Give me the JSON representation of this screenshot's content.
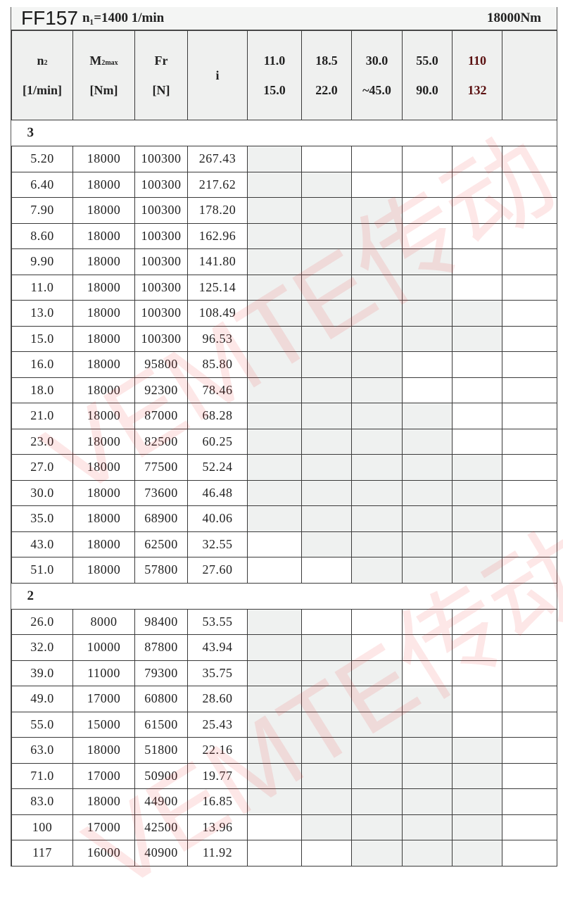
{
  "title": {
    "model": "FF157",
    "n1_label": "n₁=1400 1/min",
    "torque": "18000Nm"
  },
  "headers": [
    {
      "line1": "n",
      "sub": "2",
      "line2": "[1/min]"
    },
    {
      "line1": "M",
      "sub": "2max",
      "line2": "[Nm]"
    },
    {
      "line1": "Fr",
      "sub": "",
      "line2": "[N]"
    },
    {
      "line1": "i",
      "sub": "",
      "line2": ""
    },
    {
      "line1": "11.0",
      "sub": "",
      "line2": "15.0"
    },
    {
      "line1": "18.5",
      "sub": "",
      "line2": "22.0"
    },
    {
      "line1": "30.0",
      "sub": "",
      "line2": "~45.0"
    },
    {
      "line1": "55.0",
      "sub": "",
      "line2": "90.0"
    },
    {
      "line1": "110",
      "sub": "",
      "line2": "132"
    },
    {
      "line1": "",
      "sub": "",
      "line2": ""
    }
  ],
  "shade_color": "#eff1f0",
  "watermark": "VEMTE传动",
  "sections": [
    {
      "stage": "3",
      "rows": [
        {
          "n2": "5.20",
          "m2": "18000",
          "fr": "100300",
          "i": "267.43",
          "shaded": [
            1,
            1
          ]
        },
        {
          "n2": "6.40",
          "m2": "18000",
          "fr": "100300",
          "i": "217.62",
          "shaded": [
            1,
            2
          ]
        },
        {
          "n2": "7.90",
          "m2": "18000",
          "fr": "100300",
          "i": "178.20",
          "shaded": [
            1,
            3
          ]
        },
        {
          "n2": "8.60",
          "m2": "18000",
          "fr": "100300",
          "i": "162.96",
          "shaded": [
            1,
            3
          ]
        },
        {
          "n2": "9.90",
          "m2": "18000",
          "fr": "100300",
          "i": "141.80",
          "shaded": [
            1,
            4
          ]
        },
        {
          "n2": "11.0",
          "m2": "18000",
          "fr": "100300",
          "i": "125.14",
          "shaded": [
            1,
            4
          ]
        },
        {
          "n2": "13.0",
          "m2": "18000",
          "fr": "100300",
          "i": "108.49",
          "shaded": [
            1,
            5
          ]
        },
        {
          "n2": "15.0",
          "m2": "18000",
          "fr": "100300",
          "i": "96.53",
          "shaded": [
            1,
            5
          ]
        },
        {
          "n2": "16.0",
          "m2": "18000",
          "fr": "95800",
          "i": "85.80",
          "shaded": [
            1,
            3
          ]
        },
        {
          "n2": "18.0",
          "m2": "18000",
          "fr": "92300",
          "i": "78.46",
          "shaded": [
            1,
            3
          ]
        },
        {
          "n2": "21.0",
          "m2": "18000",
          "fr": "87000",
          "i": "68.28",
          "shaded": [
            1,
            4
          ]
        },
        {
          "n2": "23.0",
          "m2": "18000",
          "fr": "82500",
          "i": "60.25",
          "shaded": [
            1,
            4
          ]
        },
        {
          "n2": "27.0",
          "m2": "18000",
          "fr": "77500",
          "i": "52.24",
          "shaded": [
            1,
            5
          ]
        },
        {
          "n2": "30.0",
          "m2": "18000",
          "fr": "73600",
          "i": "46.48",
          "shaded": [
            1,
            5
          ]
        },
        {
          "n2": "35.0",
          "m2": "18000",
          "fr": "68900",
          "i": "40.06",
          "shaded": [
            1,
            5
          ]
        },
        {
          "n2": "43.0",
          "m2": "18000",
          "fr": "62500",
          "i": "32.55",
          "shaded": [
            2,
            5
          ]
        },
        {
          "n2": "51.0",
          "m2": "18000",
          "fr": "57800",
          "i": "27.60",
          "shaded": [
            3,
            5
          ]
        }
      ]
    },
    {
      "stage": "2",
      "rows": [
        {
          "n2": "26.0",
          "m2": "8000",
          "fr": "98400",
          "i": "53.55",
          "shaded": [
            1,
            1
          ]
        },
        {
          "n2": "32.0",
          "m2": "10000",
          "fr": "87800",
          "i": "43.94",
          "shaded": [
            1,
            2
          ]
        },
        {
          "n2": "39.0",
          "m2": "11000",
          "fr": "79300",
          "i": "35.75",
          "shaded": [
            1,
            3
          ]
        },
        {
          "n2": "49.0",
          "m2": "17000",
          "fr": "60800",
          "i": "28.60",
          "shaded": [
            1,
            4
          ]
        },
        {
          "n2": "55.0",
          "m2": "15000",
          "fr": "61500",
          "i": "25.43",
          "shaded": [
            1,
            4
          ]
        },
        {
          "n2": "63.0",
          "m2": "18000",
          "fr": "51800",
          "i": "22.16",
          "shaded": [
            1,
            5
          ]
        },
        {
          "n2": "71.0",
          "m2": "17000",
          "fr": "50900",
          "i": "19.77",
          "shaded": [
            1,
            5
          ]
        },
        {
          "n2": "83.0",
          "m2": "18000",
          "fr": "44900",
          "i": "16.85",
          "shaded": [
            1,
            5
          ]
        },
        {
          "n2": "100",
          "m2": "17000",
          "fr": "42500",
          "i": "13.96",
          "shaded": [
            2,
            5
          ]
        },
        {
          "n2": "117",
          "m2": "16000",
          "fr": "40900",
          "i": "11.92",
          "shaded": [
            3,
            5
          ]
        }
      ]
    }
  ]
}
